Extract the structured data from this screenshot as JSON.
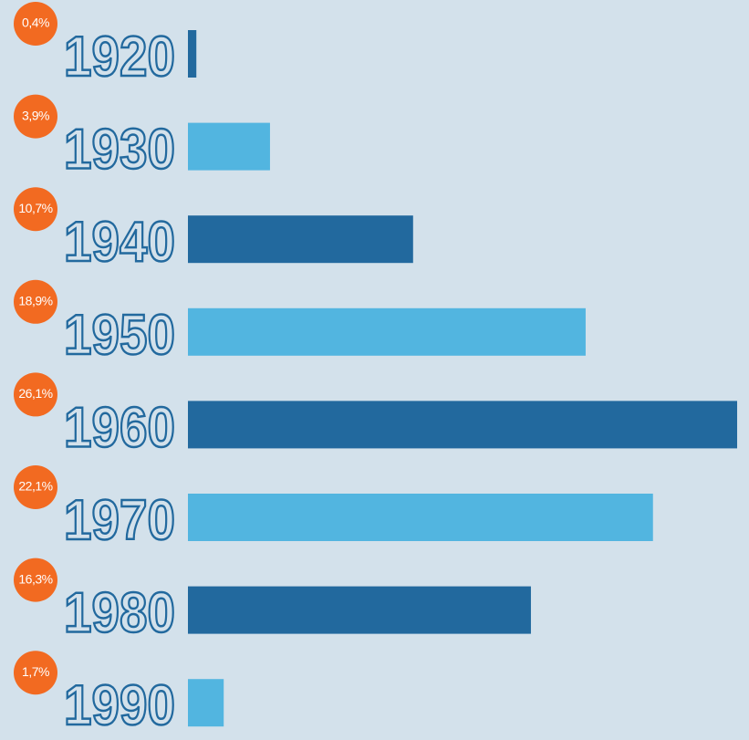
{
  "chart_data": {
    "type": "hbar",
    "categories": [
      "1920",
      "1930",
      "1940",
      "1950",
      "1960",
      "1970",
      "1980",
      "1990"
    ],
    "values": [
      0.4,
      3.9,
      10.7,
      18.9,
      26.1,
      22.1,
      16.3,
      1.7
    ],
    "value_labels": [
      "0,4%",
      "3,9%",
      "10,7%",
      "18,9%",
      "26,1%",
      "22,1%",
      "16,3%",
      "1,7%"
    ],
    "colors": [
      "#22699e",
      "#52b5e0",
      "#22699e",
      "#52b5e0",
      "#22699e",
      "#52b5e0",
      "#22699e",
      "#52b5e0"
    ],
    "label_color": "#f26a21",
    "xlim": [
      0,
      26.1
    ]
  }
}
